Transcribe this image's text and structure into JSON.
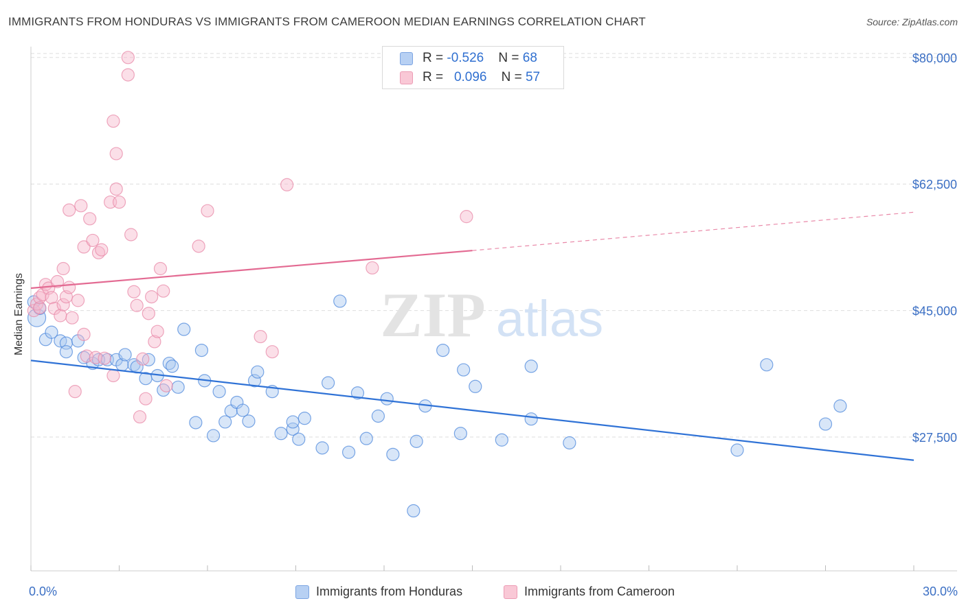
{
  "title": "IMMIGRANTS FROM HONDURAS VS IMMIGRANTS FROM CAMEROON MEDIAN EARNINGS CORRELATION CHART",
  "source": "Source: ZipAtlas.com",
  "watermark": "ZIPatlas",
  "colors": {
    "blue": "#2f72d6",
    "blue_fill": "#a9c7f0",
    "pink": "#e36a92",
    "pink_fill": "#f7b9cc",
    "axis_label": "#3b6fc4",
    "grid": "#dddddd"
  },
  "legend_top": {
    "rows": [
      {
        "r_label": "R = ",
        "r_value": "-0.526",
        "n_label": "N = ",
        "n_value": "68"
      },
      {
        "r_label": "R = ",
        "r_value": "0.096",
        "n_label": "N = ",
        "n_value": "57"
      }
    ]
  },
  "chart_data": {
    "type": "scatter",
    "title": "IMMIGRANTS FROM HONDURAS VS IMMIGRANTS FROM CAMEROON MEDIAN EARNINGS CORRELATION CHART",
    "xlabel": "",
    "ylabel": "Median Earnings",
    "xlim": [
      0,
      30
    ],
    "ylim": [
      9000,
      81500
    ],
    "x_tick_labels": [
      "0.0%",
      "30.0%"
    ],
    "y_ticks": [
      27500,
      45000,
      62500,
      80000
    ],
    "y_tick_labels": [
      "$27,500",
      "$45,000",
      "$62,500",
      "$80,000"
    ],
    "grid": true,
    "legend_placement": "bottom",
    "series": [
      {
        "name": "Immigrants from Honduras",
        "color": "#2f72d6",
        "points": [
          [
            0.2,
            44000
          ],
          [
            0.5,
            41000
          ],
          [
            0.7,
            42000
          ],
          [
            1.0,
            40800
          ],
          [
            1.2,
            40500
          ],
          [
            1.6,
            40800
          ],
          [
            1.2,
            39300
          ],
          [
            1.8,
            38500
          ],
          [
            2.1,
            37700
          ],
          [
            2.3,
            38200
          ],
          [
            2.6,
            38200
          ],
          [
            2.9,
            38200
          ],
          [
            3.1,
            37500
          ],
          [
            3.2,
            38900
          ],
          [
            3.5,
            37500
          ],
          [
            3.6,
            37200
          ],
          [
            3.9,
            35600
          ],
          [
            4.0,
            38200
          ],
          [
            4.3,
            36000
          ],
          [
            4.5,
            34000
          ],
          [
            4.7,
            37700
          ],
          [
            4.8,
            37300
          ],
          [
            5.0,
            34400
          ],
          [
            5.2,
            42400
          ],
          [
            5.6,
            29500
          ],
          [
            5.8,
            39500
          ],
          [
            5.9,
            35300
          ],
          [
            6.2,
            27700
          ],
          [
            6.4,
            33800
          ],
          [
            6.6,
            29600
          ],
          [
            6.8,
            31100
          ],
          [
            7.0,
            32300
          ],
          [
            7.2,
            31200
          ],
          [
            7.4,
            29700
          ],
          [
            7.6,
            35300
          ],
          [
            7.7,
            36500
          ],
          [
            8.2,
            33800
          ],
          [
            8.5,
            28000
          ],
          [
            8.9,
            28600
          ],
          [
            8.9,
            29600
          ],
          [
            9.1,
            27200
          ],
          [
            9.3,
            30100
          ],
          [
            9.9,
            26000
          ],
          [
            10.1,
            35000
          ],
          [
            10.5,
            46300
          ],
          [
            10.8,
            25400
          ],
          [
            11.1,
            33600
          ],
          [
            11.4,
            27300
          ],
          [
            11.8,
            30400
          ],
          [
            12.1,
            32800
          ],
          [
            12.3,
            25100
          ],
          [
            13.0,
            17300
          ],
          [
            13.1,
            26900
          ],
          [
            13.4,
            31800
          ],
          [
            14.0,
            39500
          ],
          [
            14.6,
            28000
          ],
          [
            14.7,
            36800
          ],
          [
            15.1,
            34500
          ],
          [
            16.0,
            27100
          ],
          [
            17.0,
            30000
          ],
          [
            17.0,
            37300
          ],
          [
            18.3,
            26700
          ],
          [
            24.0,
            25700
          ],
          [
            25.0,
            37500
          ],
          [
            27.0,
            29300
          ],
          [
            27.5,
            31800
          ],
          [
            0.1,
            46200
          ],
          [
            0.3,
            45300
          ]
        ]
      },
      {
        "name": "Immigrants from Cameroon",
        "color": "#e36a92",
        "points": [
          [
            0.1,
            45000
          ],
          [
            0.2,
            45900
          ],
          [
            0.3,
            45400
          ],
          [
            0.3,
            46800
          ],
          [
            0.4,
            47200
          ],
          [
            0.5,
            48600
          ],
          [
            0.6,
            48100
          ],
          [
            0.7,
            46800
          ],
          [
            0.8,
            45300
          ],
          [
            0.9,
            49000
          ],
          [
            1.0,
            44300
          ],
          [
            1.1,
            50800
          ],
          [
            1.1,
            45800
          ],
          [
            1.2,
            46900
          ],
          [
            1.3,
            48200
          ],
          [
            1.3,
            58900
          ],
          [
            1.4,
            44000
          ],
          [
            1.5,
            33800
          ],
          [
            1.6,
            46400
          ],
          [
            1.7,
            59500
          ],
          [
            1.8,
            53800
          ],
          [
            1.8,
            41700
          ],
          [
            1.9,
            38700
          ],
          [
            2.0,
            57700
          ],
          [
            2.1,
            54700
          ],
          [
            2.2,
            38500
          ],
          [
            2.3,
            53000
          ],
          [
            2.4,
            53400
          ],
          [
            2.5,
            38400
          ],
          [
            2.7,
            60000
          ],
          [
            2.8,
            71200
          ],
          [
            2.8,
            36000
          ],
          [
            2.9,
            66700
          ],
          [
            2.9,
            61800
          ],
          [
            3.0,
            60000
          ],
          [
            3.3,
            80000
          ],
          [
            3.3,
            77600
          ],
          [
            3.4,
            55500
          ],
          [
            3.5,
            47600
          ],
          [
            3.6,
            45700
          ],
          [
            3.7,
            30300
          ],
          [
            3.8,
            38300
          ],
          [
            3.9,
            32800
          ],
          [
            4.0,
            44600
          ],
          [
            4.1,
            46900
          ],
          [
            4.2,
            40700
          ],
          [
            4.3,
            42100
          ],
          [
            4.4,
            50800
          ],
          [
            4.5,
            47700
          ],
          [
            4.6,
            34600
          ],
          [
            5.7,
            53900
          ],
          [
            6.0,
            58800
          ],
          [
            7.8,
            41400
          ],
          [
            8.2,
            39300
          ],
          [
            8.7,
            62400
          ],
          [
            11.6,
            50900
          ],
          [
            14.8,
            58000
          ]
        ]
      }
    ],
    "trendlines": [
      {
        "series": "Immigrants from Honduras",
        "x": [
          0,
          30
        ],
        "y": [
          38100,
          24300
        ]
      },
      {
        "series": "Immigrants from Cameroon",
        "x": [
          0,
          15
        ],
        "y": [
          48100,
          53300
        ],
        "dashed_extension_to": [
          30,
          58600
        ]
      }
    ]
  },
  "legend_bottom": [
    {
      "label": "Immigrants from Honduras"
    },
    {
      "label": "Immigrants from Cameroon"
    }
  ]
}
